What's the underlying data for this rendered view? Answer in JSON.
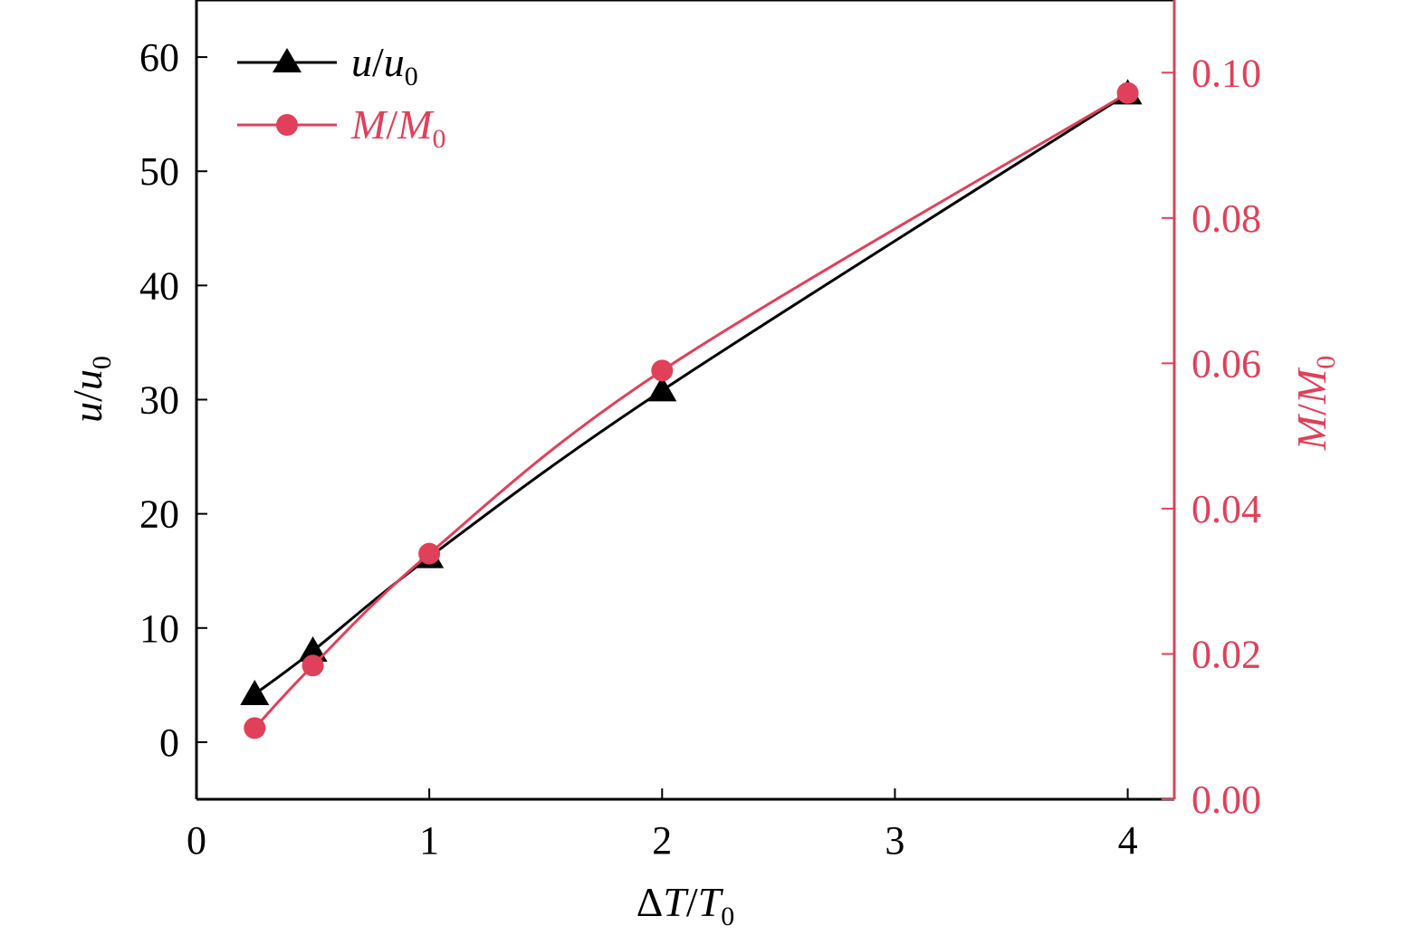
{
  "chart_data": {
    "type": "line",
    "x_axis": {
      "label_parts": [
        "Δ",
        "T",
        "/",
        "T",
        "0"
      ],
      "range": [
        0,
        4.2
      ],
      "ticks": [
        0,
        1,
        2,
        3,
        4
      ],
      "tick_labels": [
        "0",
        "1",
        "2",
        "3",
        "4"
      ]
    },
    "y_left_axis": {
      "label_parts": [
        "u",
        "/",
        "u",
        "0"
      ],
      "range": [
        -5,
        65
      ],
      "ticks": [
        0,
        10,
        20,
        30,
        40,
        50,
        60
      ],
      "tick_labels": [
        "0",
        "10",
        "20",
        "30",
        "40",
        "50",
        "60"
      ]
    },
    "y_right_axis": {
      "label_parts": [
        "M",
        "/",
        "M",
        "0"
      ],
      "range": [
        0,
        0.11
      ],
      "ticks": [
        0.0,
        0.02,
        0.04,
        0.06,
        0.08,
        0.1
      ],
      "tick_labels": [
        "0.00",
        "0.02",
        "0.04",
        "0.06",
        "0.08",
        "0.10"
      ],
      "color": "#e0405a"
    },
    "series": [
      {
        "name_parts": [
          "u",
          "/",
          "u",
          "0"
        ],
        "axis": "left",
        "marker": "triangle",
        "color": "#000000",
        "x": [
          0.25,
          0.5,
          1,
          2,
          4
        ],
        "y": [
          4.2,
          8.0,
          16.2,
          30.8,
          56.8
        ]
      },
      {
        "name_parts": [
          "M",
          "/",
          "M",
          "0"
        ],
        "axis": "right",
        "marker": "circle",
        "color": "#e0405a",
        "x": [
          0.25,
          0.5,
          1,
          2,
          4
        ],
        "y": [
          0.0098,
          0.0184,
          0.0338,
          0.059,
          0.0972
        ]
      }
    ],
    "legend_position": "top-left",
    "grid": false
  }
}
